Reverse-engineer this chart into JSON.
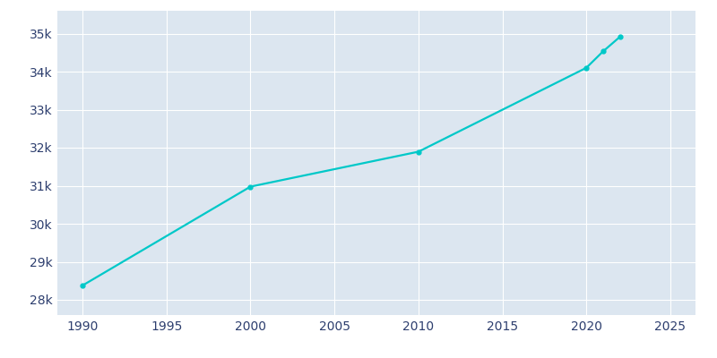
{
  "years": [
    1990,
    2000,
    2010,
    2020,
    2021,
    2022
  ],
  "population": [
    28378,
    30976,
    31894,
    34100,
    34533,
    34914
  ],
  "line_color": "#00C8C8",
  "marker_style": "o",
  "marker_size": 3.5,
  "background_color": "#FFFFFF",
  "plot_bg_color": "#DCE6F0",
  "grid_color": "#FFFFFF",
  "tick_color": "#2D3E6E",
  "xlim": [
    1988.5,
    2026.5
  ],
  "ylim": [
    27600,
    35600
  ],
  "xticks": [
    1990,
    1995,
    2000,
    2005,
    2010,
    2015,
    2020,
    2025
  ],
  "yticks": [
    28000,
    29000,
    30000,
    31000,
    32000,
    33000,
    34000,
    35000
  ],
  "ytick_labels": [
    "28k",
    "29k",
    "30k",
    "31k",
    "32k",
    "33k",
    "34k",
    "35k"
  ],
  "line_width": 1.6
}
